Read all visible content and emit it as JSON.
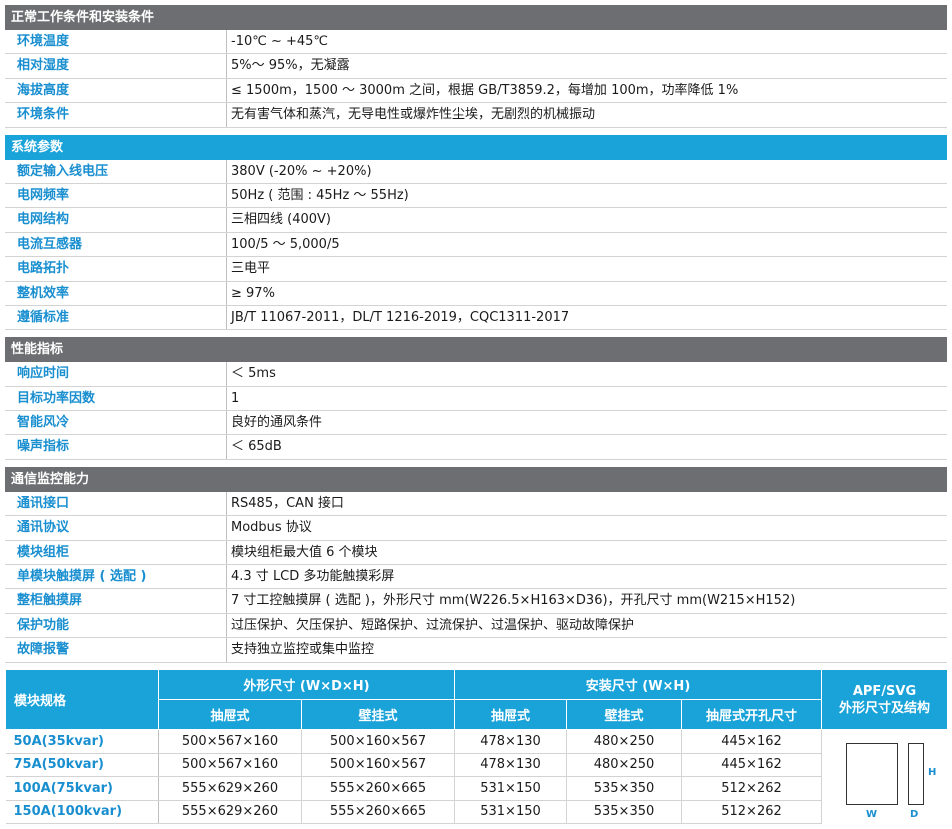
{
  "sections": [
    {
      "title": "正常工作条件和安装条件",
      "rows": [
        {
          "k": "环境温度",
          "v": "-10℃ ~ +45℃"
        },
        {
          "k": "相对湿度",
          "v": "5%～ 95%，无凝露"
        },
        {
          "k": "海拔高度",
          "v": "≤ 1500m，1500 ～ 3000m 之间，根据 GB/T3859.2，每增加 100m，功率降低 1%"
        },
        {
          "k": "环境条件",
          "v": "无有害气体和蒸汽，无导电性或爆炸性尘埃，无剧烈的机械振动"
        }
      ]
    },
    {
      "title": "系统参数",
      "rows": [
        {
          "k": "额定输入线电压",
          "v": "380V (-20% ~ +20%)"
        },
        {
          "k": "电网频率",
          "v": "50Hz ( 范围 : 45Hz ～ 55Hz)"
        },
        {
          "k": "电网结构",
          "v": "三相四线 (400V)"
        },
        {
          "k": "电流互感器",
          "v": "100/5 ～ 5,000/5"
        },
        {
          "k": "电路拓扑",
          "v": "三电平"
        },
        {
          "k": "整机效率",
          "v": "≥ 97%"
        },
        {
          "k": "遵循标准",
          "v": "JB/T 11067-2011，DL/T 1216-2019，CQC1311-2017"
        }
      ]
    },
    {
      "title": "性能指标",
      "rows": [
        {
          "k": "响应时间",
          "v": "＜ 5ms"
        },
        {
          "k": "目标功率因数",
          "v": "1"
        },
        {
          "k": "智能风冷",
          "v": "良好的通风条件"
        },
        {
          "k": "噪声指标",
          "v": "＜ 65dB"
        }
      ]
    },
    {
      "title": "通信监控能力",
      "rows": [
        {
          "k": "通讯接口",
          "v": "RS485，CAN 接口"
        },
        {
          "k": "通讯协议",
          "v": "Modbus 协议"
        },
        {
          "k": "模块组柜",
          "v": "模块组柜最大值 6 个模块"
        },
        {
          "k": "单模块触摸屏 ( 选配 )",
          "v": "4.3 寸 LCD 多功能触摸彩屏"
        },
        {
          "k": "整柜触摸屏",
          "v": "7 寸工控触摸屏 ( 选配 )，外形尺寸 mm(W226.5×H163×D36)，开孔尺寸 mm(W215×H152)"
        },
        {
          "k": "保护功能",
          "v": "过压保护、欠压保护、短路保护、过流保护、过温保护、驱动故障保护"
        },
        {
          "k": "故障报警",
          "v": "支持独立监控或集中监控"
        }
      ]
    }
  ],
  "dim": {
    "title": "模块规格",
    "outer_size": "外形尺寸 (W×D×H)",
    "install_size": "安装尺寸 (W×H)",
    "struct_title": "APF/SVG\n外形尺寸及结构",
    "sub": [
      "抽屉式",
      "壁挂式",
      "抽屉式",
      "壁挂式",
      "抽屉式开孔尺寸"
    ],
    "rows": [
      {
        "model": "50A(35kvar)",
        "c": [
          "500×567×160",
          "500×160×567",
          "478×130",
          "480×250",
          "445×162"
        ]
      },
      {
        "model": "75A(50kvar)",
        "c": [
          "500×567×160",
          "500×160×567",
          "478×130",
          "480×250",
          "445×162"
        ]
      },
      {
        "model": "100A(75kvar)",
        "c": [
          "555×629×260",
          "555×260×665",
          "531×150",
          "535×350",
          "512×262"
        ]
      },
      {
        "model": "150A(100kvar)",
        "c": [
          "555×629×260",
          "555×260×665",
          "531×150",
          "535×350",
          "512×262"
        ]
      }
    ],
    "labels": {
      "w": "W",
      "d": "D",
      "h": "H"
    }
  }
}
